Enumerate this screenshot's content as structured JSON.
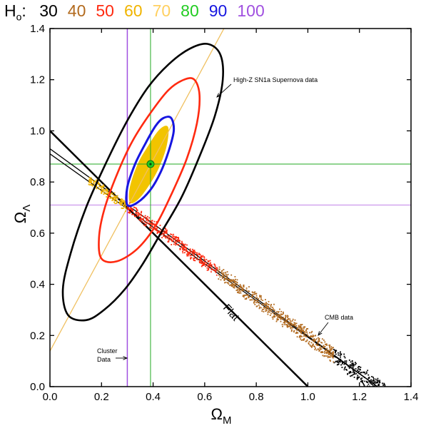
{
  "chart_data": {
    "type": "scatter",
    "legend_prefix": "H",
    "legend_prefix_sub": "o",
    "legend_items": [
      {
        "label": "30",
        "color": "#000000"
      },
      {
        "label": "40",
        "color": "#b26a1e"
      },
      {
        "label": "50",
        "color": "#ff2a10"
      },
      {
        "label": "60",
        "color": "#f0b400"
      },
      {
        "label": "70",
        "color": "#ffd060"
      },
      {
        "label": "80",
        "color": "#22cc22"
      },
      {
        "label": "90",
        "color": "#1616e0"
      },
      {
        "label": "100",
        "color": "#a050e0"
      }
    ],
    "xlabel": "Ω",
    "xlabel_sub": "M",
    "ylabel": "Ω",
    "ylabel_sub": "Λ",
    "xlim": [
      0.0,
      1.4
    ],
    "ylim": [
      0.0,
      1.4
    ],
    "xticks": [
      "0.0",
      "0.2",
      "0.4",
      "0.6",
      "0.8",
      "1.0",
      "1.2",
      "1.4"
    ],
    "yticks": [
      "0.0",
      "0.2",
      "0.4",
      "0.6",
      "0.8",
      "1.0",
      "1.2",
      "1.4"
    ],
    "annotations": {
      "supernova": "High-Z SN1a Supernova data",
      "cmb": "CMB data",
      "cluster_line1": "Cluster",
      "cluster_line2": "Data",
      "flat": "Flat"
    },
    "flat_line": {
      "x": [
        0.0,
        1.0
      ],
      "y": [
        1.0,
        0.0
      ]
    },
    "cmb_band": {
      "x": [
        0.0,
        1.27
      ],
      "upper_y": [
        0.93,
        0.0
      ],
      "lower_y": [
        0.91,
        0.0
      ]
    },
    "sn_axis_line": {
      "x": [
        -0.01,
        0.68
      ],
      "y": [
        0.12,
        1.41
      ]
    },
    "best_fit_point": {
      "x": 0.39,
      "y": 0.87
    },
    "cluster_line_x": 0.3,
    "h80_vertical_x": 0.39,
    "h80_horizontal_y": 0.87,
    "h100_horizontal_y": 0.71,
    "contours": [
      {
        "name": "outer",
        "color": "#000000",
        "points": [
          [
            0.07,
            0.28
          ],
          [
            0.05,
            0.38
          ],
          [
            0.08,
            0.52
          ],
          [
            0.14,
            0.7
          ],
          [
            0.22,
            0.88
          ],
          [
            0.3,
            1.04
          ],
          [
            0.38,
            1.17
          ],
          [
            0.46,
            1.26
          ],
          [
            0.54,
            1.32
          ],
          [
            0.61,
            1.34
          ],
          [
            0.66,
            1.3
          ],
          [
            0.67,
            1.2
          ],
          [
            0.64,
            1.06
          ],
          [
            0.58,
            0.9
          ],
          [
            0.51,
            0.74
          ],
          [
            0.43,
            0.6
          ],
          [
            0.36,
            0.48
          ],
          [
            0.29,
            0.38
          ],
          [
            0.21,
            0.3
          ],
          [
            0.14,
            0.26
          ],
          [
            0.07,
            0.28
          ]
        ]
      },
      {
        "name": "middle",
        "color": "#ff2a10",
        "points": [
          [
            0.2,
            0.5
          ],
          [
            0.19,
            0.58
          ],
          [
            0.21,
            0.69
          ],
          [
            0.26,
            0.83
          ],
          [
            0.32,
            0.96
          ],
          [
            0.39,
            1.07
          ],
          [
            0.46,
            1.16
          ],
          [
            0.52,
            1.2
          ],
          [
            0.56,
            1.2
          ],
          [
            0.58,
            1.14
          ],
          [
            0.57,
            1.03
          ],
          [
            0.53,
            0.89
          ],
          [
            0.47,
            0.75
          ],
          [
            0.41,
            0.63
          ],
          [
            0.34,
            0.54
          ],
          [
            0.26,
            0.49
          ],
          [
            0.2,
            0.5
          ]
        ]
      },
      {
        "name": "inner",
        "color": "#1616e0",
        "points": [
          [
            0.3,
            0.71
          ],
          [
            0.3,
            0.78
          ],
          [
            0.33,
            0.87
          ],
          [
            0.37,
            0.95
          ],
          [
            0.41,
            1.02
          ],
          [
            0.44,
            1.05
          ],
          [
            0.47,
            1.05
          ],
          [
            0.48,
            1.0
          ],
          [
            0.46,
            0.92
          ],
          [
            0.43,
            0.84
          ],
          [
            0.39,
            0.77
          ],
          [
            0.34,
            0.72
          ],
          [
            0.3,
            0.71
          ]
        ]
      },
      {
        "name": "core",
        "color": "#f2c400",
        "points": [
          [
            0.31,
            0.72
          ],
          [
            0.31,
            0.78
          ],
          [
            0.34,
            0.87
          ],
          [
            0.38,
            0.94
          ],
          [
            0.42,
            1.0
          ],
          [
            0.45,
            1.02
          ],
          [
            0.46,
            1.0
          ],
          [
            0.45,
            0.93
          ],
          [
            0.42,
            0.85
          ],
          [
            0.38,
            0.78
          ],
          [
            0.34,
            0.73
          ],
          [
            0.31,
            0.72
          ]
        ]
      }
    ],
    "cmb_points": {
      "count": 1400,
      "x_range": [
        0.15,
        1.33
      ],
      "band_center": "y = 0.92 * (1 - x / 1.27)",
      "color_by_x": [
        {
          "x_max": 0.3,
          "color": "#f0b400"
        },
        {
          "x_max": 0.65,
          "color": "#ff2a10"
        },
        {
          "x_max": 1.1,
          "color": "#b26a1e"
        },
        {
          "x_max": 1.4,
          "color": "#000000"
        }
      ]
    }
  }
}
